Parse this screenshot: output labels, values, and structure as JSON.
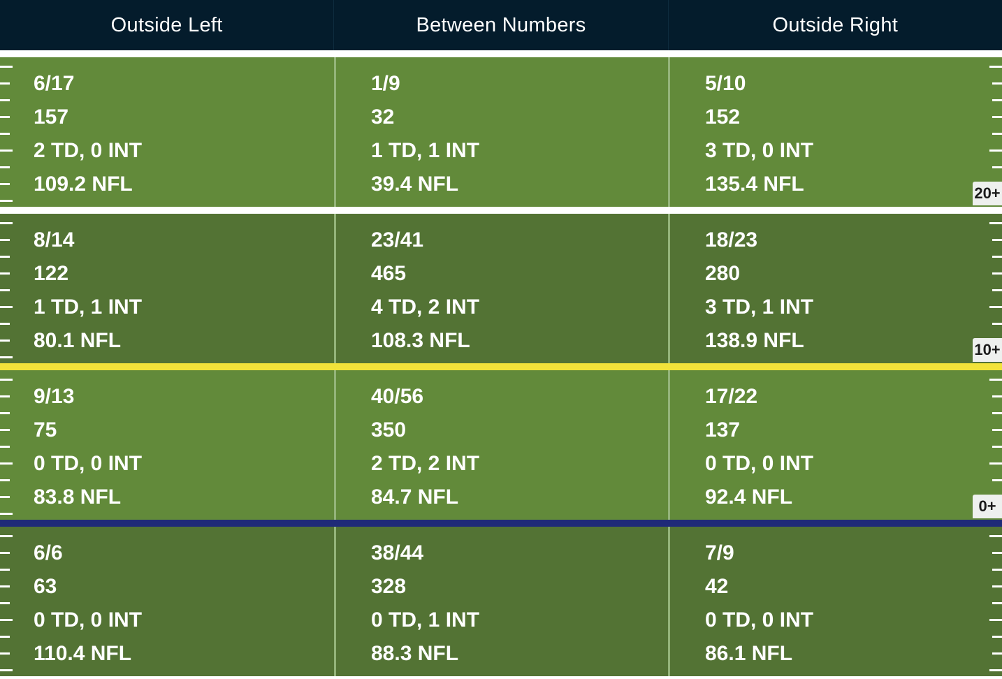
{
  "header": {
    "columns": [
      "Outside Left",
      "Between Numbers",
      "Outside Right"
    ]
  },
  "colors": {
    "header_bg": "#041c2c",
    "band_light": "#628a3a",
    "band_dark": "#537334",
    "line_white": "#ffffff",
    "line_yellow": "#f2e33a",
    "line_blue": "#1f2a78"
  },
  "zones": [
    {
      "badge": "20+",
      "cells": [
        {
          "comp": "6/17",
          "yards": "157",
          "td_int": "2 TD, 0 INT",
          "rating": "109.2 NFL"
        },
        {
          "comp": "1/9",
          "yards": "32",
          "td_int": "1 TD, 1 INT",
          "rating": "39.4 NFL"
        },
        {
          "comp": "5/10",
          "yards": "152",
          "td_int": "3 TD, 0 INT",
          "rating": "135.4 NFL"
        }
      ]
    },
    {
      "badge": "10+",
      "cells": [
        {
          "comp": "8/14",
          "yards": "122",
          "td_int": "1 TD, 1 INT",
          "rating": "80.1 NFL"
        },
        {
          "comp": "23/41",
          "yards": "465",
          "td_int": "4 TD, 2 INT",
          "rating": "108.3 NFL"
        },
        {
          "comp": "18/23",
          "yards": "280",
          "td_int": "3 TD, 1 INT",
          "rating": "138.9 NFL"
        }
      ]
    },
    {
      "badge": "0+",
      "cells": [
        {
          "comp": "9/13",
          "yards": "75",
          "td_int": "0 TD, 0 INT",
          "rating": "83.8 NFL"
        },
        {
          "comp": "40/56",
          "yards": "350",
          "td_int": "2 TD, 2 INT",
          "rating": "84.7 NFL"
        },
        {
          "comp": "17/22",
          "yards": "137",
          "td_int": "0 TD, 0 INT",
          "rating": "92.4 NFL"
        }
      ]
    },
    {
      "badge": "",
      "cells": [
        {
          "comp": "6/6",
          "yards": "63",
          "td_int": "0 TD, 0 INT",
          "rating": "110.4 NFL"
        },
        {
          "comp": "38/44",
          "yards": "328",
          "td_int": "0 TD, 1 INT",
          "rating": "88.3 NFL"
        },
        {
          "comp": "7/9",
          "yards": "42",
          "td_int": "0 TD, 0 INT",
          "rating": "86.1 NFL"
        }
      ]
    }
  ]
}
